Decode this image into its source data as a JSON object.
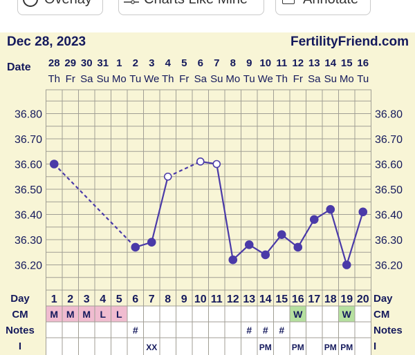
{
  "toolbar": {
    "overlay_label": "Overlay",
    "charts_like_mine_label": "Charts Like Mine",
    "annotate_label": "Annotate"
  },
  "header": {
    "date": "Dec 28, 2023",
    "brand": "FertilityFriend.com"
  },
  "row_labels": {
    "date": "Date",
    "day": "Day",
    "cm": "CM",
    "notes": "Notes",
    "i": "I"
  },
  "colors": {
    "background": "#f8f5d6",
    "grid": "#a09e94",
    "line": "#4a3aa8",
    "text": "#14195c",
    "cm_pink": "#f0bcd0",
    "cm_green": "#b6e0a0"
  },
  "chart_data": {
    "type": "line",
    "dates": [
      "28",
      "29",
      "30",
      "31",
      "1",
      "2",
      "3",
      "4",
      "5",
      "6",
      "7",
      "8",
      "9",
      "10",
      "11",
      "12",
      "13",
      "14",
      "15",
      "16"
    ],
    "weekdays": [
      "Th",
      "Fr",
      "Sa",
      "Su",
      "Mo",
      "Tu",
      "We",
      "Th",
      "Fr",
      "Sa",
      "Su",
      "Mo",
      "Tu",
      "We",
      "Th",
      "Fr",
      "Sa",
      "Su",
      "Mo",
      "Tu"
    ],
    "cycle_days": [
      "1",
      "2",
      "3",
      "4",
      "5",
      "6",
      "7",
      "8",
      "9",
      "10",
      "11",
      "12",
      "13",
      "14",
      "15",
      "16",
      "17",
      "18",
      "19",
      "20"
    ],
    "y_ticks": [
      "36.80",
      "36.70",
      "36.60",
      "36.50",
      "36.40",
      "36.30",
      "36.20"
    ],
    "ylim": [
      36.1,
      36.9
    ],
    "temperatures": [
      36.6,
      null,
      null,
      null,
      null,
      36.27,
      36.29,
      36.55,
      null,
      36.61,
      36.6,
      36.22,
      36.28,
      36.24,
      36.32,
      36.27,
      36.38,
      36.42,
      36.2,
      36.41
    ],
    "open_markers": [
      7,
      9,
      10
    ],
    "dashed_segments": [
      [
        0,
        5
      ],
      [
        7,
        9
      ]
    ],
    "cm": [
      "M",
      "M",
      "M",
      "L",
      "L",
      "",
      "",
      "",
      "",
      "",
      "",
      "",
      "",
      "",
      "",
      "W",
      "",
      "",
      "W",
      ""
    ],
    "cm_colors": [
      "pink",
      "pink",
      "pink",
      "pink",
      "pink",
      "",
      "",
      "",
      "",
      "",
      "",
      "",
      "",
      "",
      "",
      "green",
      "",
      "",
      "green",
      ""
    ],
    "notes": [
      "",
      "",
      "",
      "",
      "",
      "#",
      "",
      "",
      "",
      "",
      "",
      "",
      "#",
      "#",
      "#",
      "",
      "",
      "",
      "",
      ""
    ],
    "intercourse": [
      "",
      "",
      "",
      "",
      "",
      "",
      "XX",
      "",
      "",
      "",
      "",
      "",
      "",
      "PM",
      "",
      "PM",
      "",
      "PM",
      "PM",
      ""
    ]
  }
}
